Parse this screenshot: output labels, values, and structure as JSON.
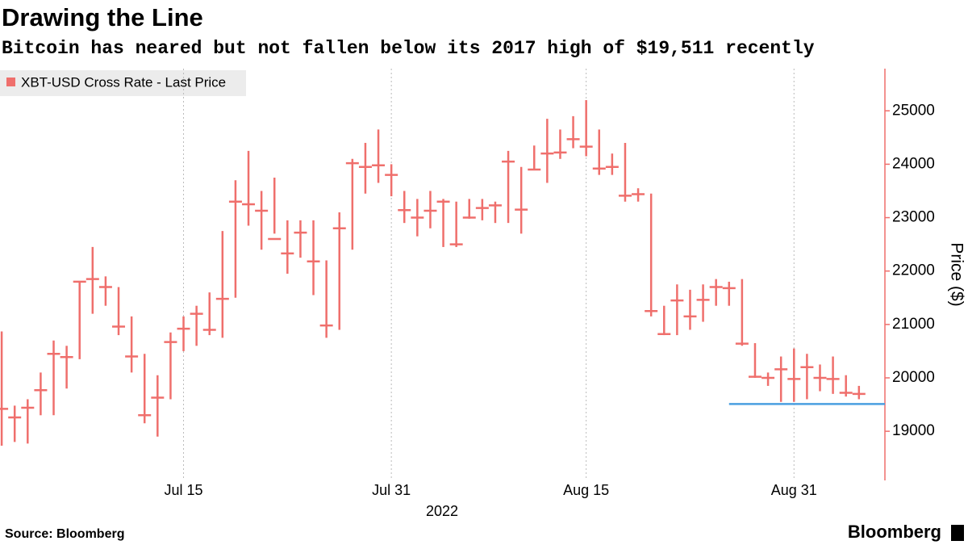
{
  "chart_data": {
    "type": "hlc",
    "title": "Drawing the Line",
    "subtitle": "Bitcoin has neared but not fallen below its 2017 high of $19,511 recently",
    "legend_label": "XBT-USD Cross Rate - Last Price",
    "y_axis_label": "Price ($)",
    "x_axis_label": "2022",
    "x": [
      "2022-07-01",
      "2022-07-02",
      "2022-07-03",
      "2022-07-04",
      "2022-07-05",
      "2022-07-06",
      "2022-07-07",
      "2022-07-08",
      "2022-07-09",
      "2022-07-10",
      "2022-07-11",
      "2022-07-12",
      "2022-07-13",
      "2022-07-14",
      "2022-07-15",
      "2022-07-16",
      "2022-07-17",
      "2022-07-18",
      "2022-07-19",
      "2022-07-20",
      "2022-07-21",
      "2022-07-22",
      "2022-07-23",
      "2022-07-24",
      "2022-07-25",
      "2022-07-26",
      "2022-07-27",
      "2022-07-28",
      "2022-07-29",
      "2022-07-30",
      "2022-07-31",
      "2022-08-01",
      "2022-08-02",
      "2022-08-03",
      "2022-08-04",
      "2022-08-05",
      "2022-08-06",
      "2022-08-07",
      "2022-08-08",
      "2022-08-09",
      "2022-08-10",
      "2022-08-11",
      "2022-08-12",
      "2022-08-13",
      "2022-08-14",
      "2022-08-15",
      "2022-08-16",
      "2022-08-17",
      "2022-08-18",
      "2022-08-19",
      "2022-08-20",
      "2022-08-21",
      "2022-08-22",
      "2022-08-23",
      "2022-08-24",
      "2022-08-25",
      "2022-08-26",
      "2022-08-27",
      "2022-08-28",
      "2022-08-29",
      "2022-08-30",
      "2022-08-31",
      "2022-09-01",
      "2022-09-02",
      "2022-09-03",
      "2022-09-04",
      "2022-09-05"
    ],
    "series": [
      {
        "name": "XBT-USD Cross Rate - Last Price",
        "color": "#ef6f6c",
        "high": [
          20870,
          19480,
          19600,
          20100,
          20700,
          20600,
          21800,
          22450,
          21900,
          21700,
          21150,
          20450,
          20050,
          20850,
          21150,
          21350,
          21600,
          22750,
          23700,
          24250,
          23500,
          23750,
          22950,
          22950,
          22950,
          22200,
          23100,
          24100,
          24400,
          24650,
          24000,
          23500,
          23350,
          23500,
          23350,
          23300,
          23350,
          23350,
          23300,
          24250,
          23950,
          24350,
          24850,
          24650,
          24900,
          25200,
          24650,
          24200,
          24400,
          23550,
          23450,
          21350,
          21750,
          21650,
          21750,
          21850,
          21800,
          21850,
          20650,
          20100,
          20400,
          20550,
          20450,
          20250,
          20400,
          20050,
          19850
        ],
        "low": [
          18730,
          18800,
          18770,
          19300,
          19300,
          19800,
          20350,
          21200,
          21350,
          20800,
          20100,
          19150,
          18900,
          19600,
          20500,
          20600,
          20800,
          20750,
          21500,
          22850,
          22400,
          22700,
          21950,
          22250,
          21550,
          20750,
          20900,
          22400,
          23450,
          23650,
          23400,
          22900,
          22650,
          22800,
          22450,
          22450,
          22980,
          22950,
          22900,
          22900,
          22700,
          23900,
          23650,
          24100,
          24300,
          24150,
          23800,
          23800,
          23300,
          23300,
          21150,
          20800,
          20800,
          20900,
          21050,
          21350,
          21350,
          20600,
          20000,
          19850,
          19550,
          19550,
          19600,
          19750,
          19700,
          19650,
          19600
        ],
        "close": [
          19420,
          19260,
          19440,
          19770,
          20450,
          20390,
          21800,
          21850,
          21700,
          20960,
          20400,
          19300,
          19630,
          20670,
          20920,
          21200,
          20900,
          21480,
          23300,
          23250,
          23130,
          22600,
          22330,
          22720,
          22180,
          20980,
          22800,
          24020,
          23950,
          23980,
          23800,
          23140,
          23000,
          23130,
          23300,
          22500,
          23000,
          23180,
          23230,
          24050,
          23150,
          23900,
          24200,
          24220,
          24470,
          24330,
          23920,
          23950,
          23410,
          23440,
          21250,
          20820,
          21450,
          21150,
          21460,
          21700,
          21680,
          20640,
          20020,
          20000,
          20160,
          19980,
          20200,
          20000,
          19980,
          19720,
          19700
        ]
      }
    ],
    "reference_line": {
      "value": 19511,
      "start": "2022-08-26",
      "color": "#4a9fe0"
    },
    "xlim": [
      "2022-06-30",
      "2022-09-07"
    ],
    "xticks": [
      {
        "value": "2022-07-15",
        "label": "Jul 15"
      },
      {
        "value": "2022-07-31",
        "label": "Jul 31"
      },
      {
        "value": "2022-08-15",
        "label": "Aug 15"
      },
      {
        "value": "2022-08-31",
        "label": "Aug 31"
      }
    ],
    "ylim": [
      18080,
      25790
    ],
    "yticks": [
      19000,
      20000,
      21000,
      22000,
      23000,
      24000,
      25000
    ],
    "grid": true,
    "source": "Source: Bloomberg",
    "brand": "Bloomberg"
  }
}
